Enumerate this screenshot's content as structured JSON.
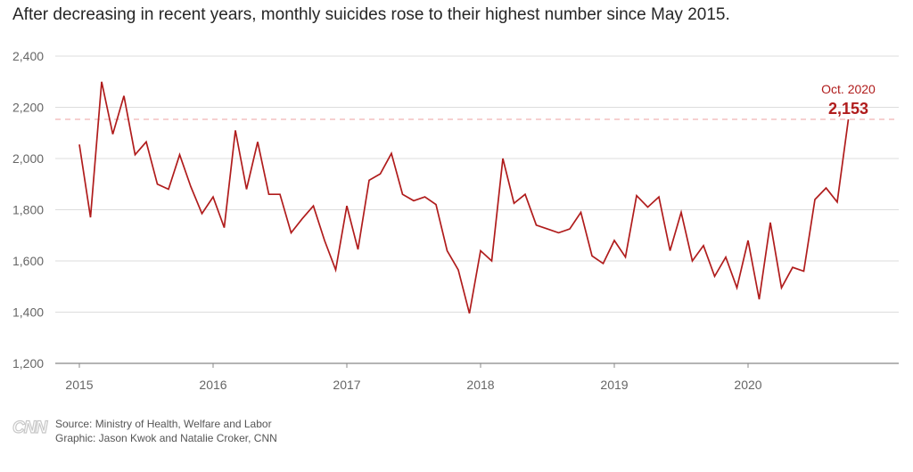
{
  "title": "After decreasing in recent years, monthly suicides rose to their highest number since May 2015.",
  "footer": {
    "logo": "CNN",
    "source": "Source: Ministry of Health, Welfare and Labor",
    "graphic": "Graphic: Jason Kwok and Natalie Croker, CNN"
  },
  "colors": {
    "line": "#b01c1c",
    "grid": "#dddddd",
    "axis": "#888888",
    "reference_line": "#f0b4b4",
    "annotation": "#b01c1c"
  },
  "chart_data": {
    "type": "line",
    "title": "After decreasing in recent years, monthly suicides rose to their highest number since May 2015.",
    "xlabel": "",
    "ylabel": "",
    "ylim": [
      1200,
      2400
    ],
    "yticks": [
      1200,
      1400,
      1600,
      1800,
      2000,
      2200,
      2400
    ],
    "ytick_labels": [
      "1,200",
      "1,400",
      "1,600",
      "1,800",
      "2,000",
      "2,200",
      "2,400"
    ],
    "xticks": [
      "2015",
      "2016",
      "2017",
      "2018",
      "2019",
      "2020"
    ],
    "grid": true,
    "x_start": "2015-01",
    "x_end": "2020-10",
    "series": [
      {
        "values": [
          2055,
          1770,
          2300,
          2095,
          2245,
          2015,
          2065,
          1900,
          1880,
          2015,
          1890,
          1785,
          1850,
          1730,
          2110,
          1880,
          2065,
          1860,
          1860,
          1710,
          1765,
          1815,
          1680,
          1565,
          1815,
          1645,
          1915,
          1940,
          2020,
          1860,
          1835,
          1850,
          1820,
          1640,
          1565,
          1395,
          1640,
          1600,
          2000,
          1825,
          1860,
          1740,
          1725,
          1710,
          1725,
          1790,
          1620,
          1590,
          1680,
          1615,
          1855,
          1810,
          1850,
          1640,
          1790,
          1600,
          1660,
          1540,
          1615,
          1495,
          1680,
          1450,
          1750,
          1495,
          1575,
          1560,
          1840,
          1885,
          1830,
          2153
        ]
      }
    ],
    "annotation": {
      "label": "Oct. 2020",
      "value_label": "2,153",
      "value": 2153
    },
    "reference_line": 2153
  }
}
